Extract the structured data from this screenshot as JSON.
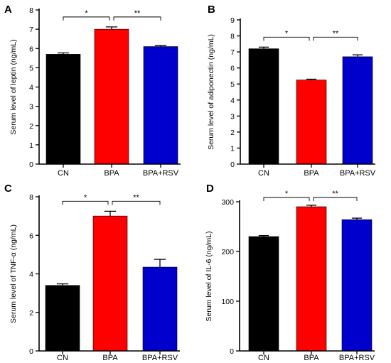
{
  "chart_data": [
    {
      "panel": "A",
      "type": "bar",
      "categories": [
        "CN",
        "BPA",
        "BPA+RSV"
      ],
      "values": [
        5.7,
        7.0,
        6.1
      ],
      "errors": [
        0.07,
        0.12,
        0.05
      ],
      "colors": [
        "#000000",
        "#ff0000",
        "#0000cc"
      ],
      "ylabel": "Serum level of leptin (ng/mL)",
      "ylim": [
        0,
        8
      ],
      "yticks": [
        0,
        1,
        2,
        3,
        4,
        5,
        6,
        7,
        8
      ],
      "significance": [
        {
          "from": 0,
          "to": 1,
          "label": "*"
        },
        {
          "from": 1,
          "to": 2,
          "label": "**"
        }
      ]
    },
    {
      "panel": "B",
      "type": "bar",
      "categories": [
        "CN",
        "BPA",
        "BPA+RSV"
      ],
      "values": [
        7.2,
        5.25,
        6.7
      ],
      "errors": [
        0.1,
        0.05,
        0.12
      ],
      "colors": [
        "#000000",
        "#ff0000",
        "#0000cc"
      ],
      "ylabel": "Serum level of adiponectin (ng/mL)",
      "ylim": [
        0,
        9
      ],
      "yticks": [
        0,
        1,
        2,
        3,
        4,
        5,
        6,
        7,
        8,
        9
      ],
      "significance": [
        {
          "from": 0,
          "to": 1,
          "label": "*"
        },
        {
          "from": 1,
          "to": 2,
          "label": "**"
        }
      ]
    },
    {
      "panel": "C",
      "type": "bar",
      "categories": [
        "CN",
        "BPA",
        "BPA+RSV"
      ],
      "values": [
        3.4,
        7.0,
        4.35
      ],
      "errors": [
        0.08,
        0.25,
        0.4
      ],
      "colors": [
        "#000000",
        "#ff0000",
        "#0000cc"
      ],
      "ylabel": "Serum level of TNF-α (ng/mL)",
      "ylim": [
        0,
        8
      ],
      "yticks": [
        0,
        2,
        4,
        6,
        8
      ],
      "significance": [
        {
          "from": 0,
          "to": 1,
          "label": "*"
        },
        {
          "from": 1,
          "to": 2,
          "label": "**"
        }
      ]
    },
    {
      "panel": "D",
      "type": "bar",
      "categories": [
        "CN",
        "BPA",
        "BPA+RSV"
      ],
      "values": [
        230,
        290,
        264
      ],
      "errors": [
        2,
        3,
        3
      ],
      "colors": [
        "#000000",
        "#ff0000",
        "#0000cc"
      ],
      "ylabel": "Serum level of IL-6 (ng/mL)",
      "ylim": [
        0,
        300
      ],
      "yticks": [
        0,
        100,
        200,
        300
      ],
      "significance": [
        {
          "from": 0,
          "to": 1,
          "label": "*"
        },
        {
          "from": 1,
          "to": 2,
          "label": "**"
        }
      ]
    }
  ]
}
